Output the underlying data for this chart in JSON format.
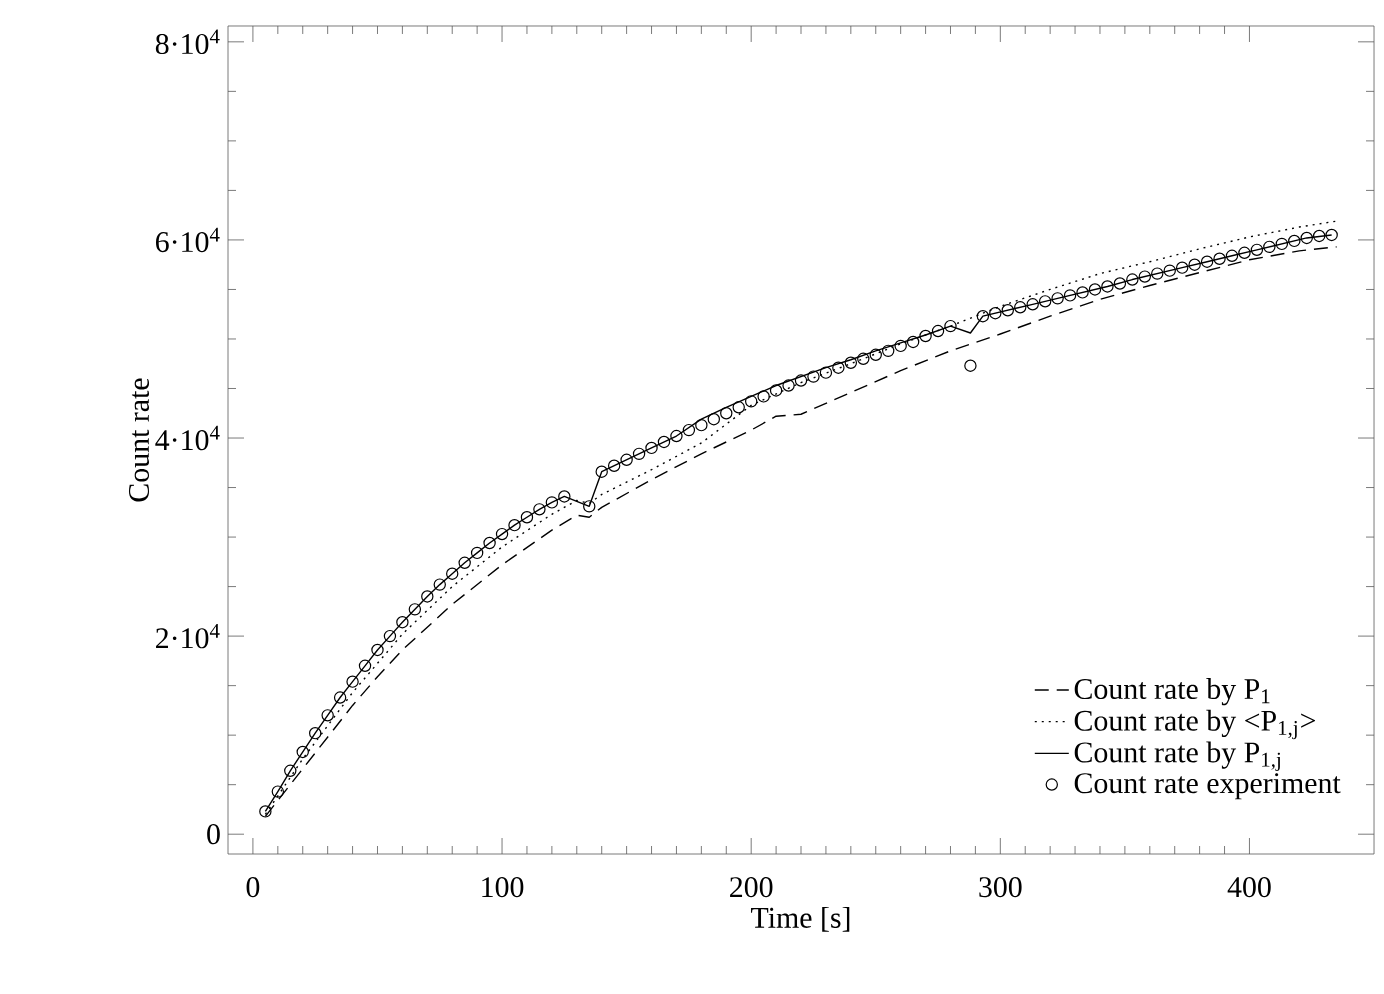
{
  "chart_data": {
    "type": "line",
    "xlabel": "Time [s]",
    "ylabel": "Count rate",
    "xlim": [
      -10,
      450
    ],
    "ylim": [
      -2000,
      81600
    ],
    "xticks": [
      0,
      100,
      200,
      300,
      400
    ],
    "yticks": [
      0,
      {
        "value": 20000,
        "label": "2·10$^{4}$"
      },
      {
        "value": 40000,
        "label": "4·10$^{4}$"
      },
      {
        "value": 60000,
        "label": "6·10$^{4}$"
      },
      {
        "value": 80000,
        "label": "8·10$^{4}$"
      }
    ],
    "legend": "bottom right",
    "grid": false,
    "series": [
      {
        "name": "Count rate by P$_{1}$",
        "type": "line",
        "line_style": "dashed",
        "color": "#000000",
        "x": [
          5,
          20,
          40,
          50,
          60,
          80,
          100,
          120,
          130,
          135,
          140,
          160,
          180,
          200,
          210,
          220,
          240,
          260,
          280,
          300,
          320,
          340,
          360,
          380,
          400,
          420,
          435
        ],
        "values": [
          1800,
          6600,
          13000,
          15900,
          18600,
          23200,
          27200,
          30700,
          32200,
          32000,
          33000,
          35800,
          38400,
          40800,
          42200,
          42400,
          44600,
          46800,
          48800,
          50500,
          52300,
          54000,
          55400,
          56700,
          58000,
          58900,
          59300
        ]
      },
      {
        "name": "Count rate by <P$_{1,j}$>",
        "type": "line",
        "line_style": "dotted",
        "color": "#000000",
        "x": [
          5,
          20,
          40,
          60,
          80,
          100,
          120,
          130,
          135,
          140,
          160,
          180,
          200,
          220,
          240,
          260,
          280,
          290,
          300,
          320,
          340,
          360,
          380,
          400,
          420,
          435
        ],
        "values": [
          2000,
          7600,
          14300,
          20200,
          25000,
          29000,
          32300,
          33700,
          33400,
          34300,
          36800,
          39500,
          43300,
          45600,
          47500,
          49500,
          51300,
          52300,
          53300,
          55000,
          56600,
          57800,
          59100,
          60300,
          61300,
          61900
        ]
      },
      {
        "name": "Count rate by P$_{1,j}$",
        "type": "line",
        "line_style": "solid",
        "color": "#000000",
        "x": [
          5,
          10,
          15,
          20,
          25,
          30,
          35,
          40,
          45,
          50,
          55,
          60,
          65,
          70,
          75,
          80,
          85,
          90,
          95,
          100,
          105,
          110,
          115,
          120,
          125,
          135,
          140,
          150,
          160,
          170,
          180,
          190,
          200,
          210,
          220,
          230,
          240,
          250,
          260,
          270,
          280,
          288,
          293,
          303,
          313,
          323,
          333,
          343,
          353,
          363,
          373,
          383,
          393,
          403,
          413,
          423,
          433
        ],
        "values": [
          2300,
          4300,
          6400,
          8300,
          10200,
          12000,
          13800,
          15400,
          17000,
          18600,
          20000,
          21400,
          22700,
          24000,
          25200,
          26300,
          27400,
          28400,
          29400,
          30300,
          31200,
          32000,
          32800,
          33500,
          34100,
          33100,
          36600,
          37800,
          39000,
          40200,
          41900,
          43100,
          44200,
          45300,
          46200,
          47100,
          47900,
          48800,
          49600,
          50400,
          51300,
          50600,
          52300,
          52900,
          53500,
          54100,
          54700,
          55300,
          56000,
          56600,
          57200,
          57800,
          58400,
          59000,
          59600,
          60200,
          60500
        ]
      },
      {
        "name": "Count rate experiment",
        "type": "scatter",
        "marker": "circle",
        "color": "#000000",
        "x": [
          5,
          10,
          15,
          20,
          25,
          30,
          35,
          40,
          45,
          50,
          55,
          60,
          65,
          70,
          75,
          80,
          85,
          90,
          95,
          100,
          105,
          110,
          115,
          120,
          125,
          135,
          140,
          145,
          150,
          155,
          160,
          165,
          170,
          175,
          180,
          185,
          190,
          195,
          200,
          205,
          210,
          215,
          220,
          225,
          230,
          235,
          240,
          245,
          250,
          255,
          260,
          265,
          270,
          275,
          280,
          288,
          293,
          298,
          303,
          308,
          313,
          318,
          323,
          328,
          333,
          338,
          343,
          348,
          353,
          358,
          363,
          368,
          373,
          378,
          383,
          388,
          393,
          398,
          403,
          408,
          413,
          418,
          423,
          428,
          433
        ],
        "values": [
          2300,
          4300,
          6400,
          8300,
          10200,
          12000,
          13800,
          15400,
          17000,
          18600,
          20000,
          21400,
          22700,
          24000,
          25200,
          26300,
          27400,
          28400,
          29400,
          30300,
          31200,
          32000,
          32800,
          33500,
          34100,
          33100,
          36600,
          37200,
          37800,
          38400,
          39000,
          39600,
          40200,
          40800,
          41300,
          41900,
          42500,
          43100,
          43700,
          44200,
          44800,
          45300,
          45800,
          46200,
          46600,
          47100,
          47600,
          48000,
          48400,
          48800,
          49300,
          49700,
          50300,
          50800,
          51300,
          47300,
          52300,
          52600,
          52900,
          53200,
          53500,
          53800,
          54100,
          54400,
          54700,
          55000,
          55300,
          55600,
          56000,
          56300,
          56600,
          56900,
          57200,
          57500,
          57800,
          58100,
          58400,
          58700,
          59000,
          59300,
          59600,
          59900,
          60200,
          60400,
          60500
        ]
      }
    ]
  }
}
